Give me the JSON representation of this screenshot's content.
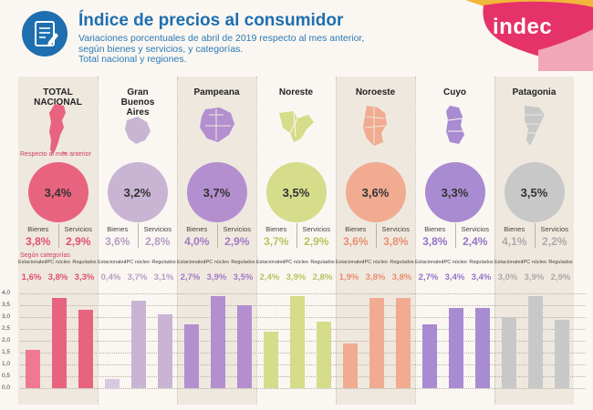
{
  "header": {
    "title": "Índice de precios al consumidor",
    "subtitle_lines": [
      "Variaciones porcentuales de abril de 2019 respecto al mes anterior,",
      "según bienes y servicios, y categorías.",
      "Total nacional y regiones."
    ],
    "logo": "indec",
    "icon": "document-pencil-icon"
  },
  "labels": {
    "monthly": "Respecto al mes anterior",
    "categories": "Según categorías",
    "bienes": "Bienes",
    "servicios": "Servicios",
    "cat_estacionales": "Estacionales",
    "cat_nucleo": "IPC núcleo",
    "cat_regulados": "Regulados"
  },
  "regions": [
    {
      "name": "TOTAL NACIONAL",
      "total": "3,4%",
      "bienes": "3,8%",
      "servicios": "2,9%",
      "estacionales": "1,6%",
      "nucleo": "3,8%",
      "regulados": "3,3%",
      "color": "#e8637e",
      "text_color": "#e0506e"
    },
    {
      "name": "Gran Buenos Aires",
      "total": "3,2%",
      "bienes": "3,6%",
      "servicios": "2,8%",
      "estacionales": "0,4%",
      "nucleo": "3,7%",
      "regulados": "3,1%",
      "color": "#c9b5d3",
      "text_color": "#b59dc2"
    },
    {
      "name": "Pampeana",
      "total": "3,7%",
      "bienes": "4,0%",
      "servicios": "2,9%",
      "estacionales": "2,7%",
      "nucleo": "3,9%",
      "regulados": "3,5%",
      "color": "#b38fcf",
      "text_color": "#a27bc3"
    },
    {
      "name": "Noreste",
      "total": "3,5%",
      "bienes": "3,7%",
      "servicios": "2,9%",
      "estacionales": "2,4%",
      "nucleo": "3,9%",
      "regulados": "2,8%",
      "color": "#d5dc8a",
      "text_color": "#b9c25e"
    },
    {
      "name": "Noroeste",
      "total": "3,6%",
      "bienes": "3,6%",
      "servicios": "3,8%",
      "estacionales": "1,9%",
      "nucleo": "3,8%",
      "regulados": "3,8%",
      "color": "#f0ab90",
      "text_color": "#e78f70"
    },
    {
      "name": "Cuyo",
      "total": "3,3%",
      "bienes": "3,8%",
      "servicios": "2,4%",
      "estacionales": "2,7%",
      "nucleo": "3,4%",
      "regulados": "3,4%",
      "color": "#a88bd0",
      "text_color": "#9474c6"
    },
    {
      "name": "Patagonia",
      "total": "3,5%",
      "bienes": "4,1%",
      "servicios": "2,2%",
      "estacionales": "3,0%",
      "nucleo": "3,9%",
      "regulados": "2,9%",
      "color": "#c8c8c8",
      "text_color": "#aaaaaa"
    }
  ],
  "chart_data": {
    "type": "bar",
    "categories": [
      "Estacionales",
      "IPC núcleo",
      "Regulados"
    ],
    "groups": [
      "TOTAL NACIONAL",
      "Gran Buenos Aires",
      "Pampeana",
      "Noreste",
      "Noroeste",
      "Cuyo",
      "Patagonia"
    ],
    "series": [
      {
        "name": "TOTAL NACIONAL",
        "values": [
          1.6,
          3.8,
          3.3
        ]
      },
      {
        "name": "Gran Buenos Aires",
        "values": [
          0.4,
          3.7,
          3.1
        ]
      },
      {
        "name": "Pampeana",
        "values": [
          2.7,
          3.9,
          3.5
        ]
      },
      {
        "name": "Noreste",
        "values": [
          2.4,
          3.9,
          2.8
        ]
      },
      {
        "name": "Noroeste",
        "values": [
          1.9,
          3.8,
          3.8
        ]
      },
      {
        "name": "Cuyo",
        "values": [
          2.7,
          3.4,
          3.4
        ]
      },
      {
        "name": "Patagonia",
        "values": [
          3.0,
          3.9,
          2.9
        ]
      }
    ],
    "yticks": [
      "0,0",
      "0,5",
      "1,0",
      "1,5",
      "2,0",
      "2,5",
      "3,0",
      "3,5",
      "4,0"
    ],
    "ylim": [
      0,
      4
    ],
    "grid": true,
    "colors": {
      "TOTAL NACIONAL": [
        "#ef7990",
        "#e8637e",
        "#e8637e"
      ],
      "Gran Buenos Aires": [
        "#d8c8e0",
        "#c9b5d3",
        "#c9b5d3"
      ],
      "Pampeana": [
        "#b38fcf",
        "#b38fcf",
        "#b38fcf"
      ],
      "Noreste": [
        "#d5dc8a",
        "#d5dc8a",
        "#d5dc8a"
      ],
      "Noroeste": [
        "#f0ab90",
        "#f0ab90",
        "#f0ab90"
      ],
      "Cuyo": [
        "#a88bd0",
        "#a88bd0",
        "#a88bd0"
      ],
      "Patagonia": [
        "#c8c8c8",
        "#c8c8c8",
        "#c8c8c8"
      ]
    }
  }
}
